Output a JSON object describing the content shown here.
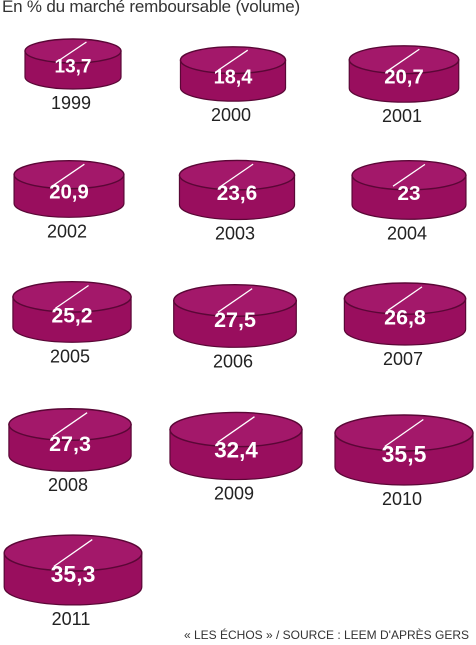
{
  "subtitle": "En % du marché remboursable (volume)",
  "source": "« LES ÉCHOS » / SOURCE : LEEM D'APRÈS GERS",
  "colors": {
    "pill_side": "#990e5e",
    "pill_top": "#a3186a",
    "pill_edge": "#5a0736",
    "text_on_pill": "#ffffff"
  },
  "chart_data": {
    "type": "pictogram",
    "title": "",
    "subtitle": "En % du marché remboursable (volume)",
    "unit": "%",
    "categories": [
      "1999",
      "2000",
      "2001",
      "2002",
      "2003",
      "2004",
      "2005",
      "2006",
      "2007",
      "2008",
      "2009",
      "2010",
      "2011"
    ],
    "values": [
      13.7,
      18.4,
      20.7,
      20.9,
      23.6,
      23,
      25.2,
      27.5,
      26.8,
      27.3,
      32.4,
      35.5,
      35.3
    ],
    "value_labels": [
      "13,7",
      "18,4",
      "20,7",
      "20,9",
      "23,6",
      "23",
      "25,2",
      "27,5",
      "26,8",
      "27,3",
      "32,4",
      "35,5",
      "35,3"
    ],
    "legend": "none",
    "grid": false
  }
}
